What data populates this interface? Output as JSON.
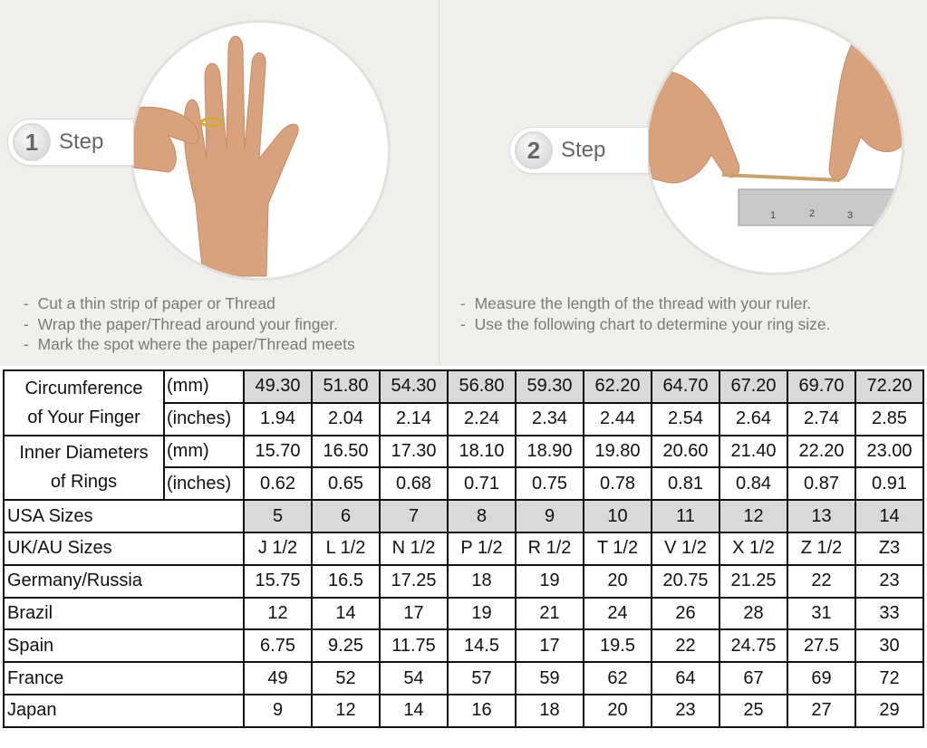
{
  "colors": {
    "background": "#f1efec",
    "header_cell_gray": "#d9d9d9",
    "border": "#111111",
    "instruction_text": "#7a7a7a"
  },
  "steps": [
    {
      "number": "1",
      "label": "Step",
      "image": "hand-with-ring-icon",
      "notes": [
        "Cut a thin strip of paper or Thread",
        "Wrap the paper/Thread around your finger.",
        "Mark the spot where the paper/Thread meets"
      ]
    },
    {
      "number": "2",
      "label": "Step",
      "image": "thread-and-ruler-icon",
      "notes": [
        "Measure the length of the thread with your ruler.",
        "Use the following chart to determine your ring size."
      ]
    }
  ],
  "table": {
    "circumference": {
      "label_line1": "Circumference",
      "label_line2": "of Your Finger",
      "mm": {
        "unit": "(mm)",
        "values": [
          "49.30",
          "51.80",
          "54.30",
          "56.80",
          "59.30",
          "62.20",
          "64.70",
          "67.20",
          "69.70",
          "72.20"
        ]
      },
      "inches": {
        "unit": "(inches)",
        "values": [
          "1.94",
          "2.04",
          "2.14",
          "2.24",
          "2.34",
          "2.44",
          "2.54",
          "2.64",
          "2.74",
          "2.85"
        ]
      }
    },
    "diameter": {
      "label_line1": "Inner Diameters",
      "label_line2": "of Rings",
      "mm": {
        "unit": "(mm)",
        "values": [
          "15.70",
          "16.50",
          "17.30",
          "18.10",
          "18.90",
          "19.80",
          "20.60",
          "21.40",
          "22.20",
          "23.00"
        ]
      },
      "inches": {
        "unit": "(inches)",
        "values": [
          "0.62",
          "0.65",
          "0.68",
          "0.71",
          "0.75",
          "0.78",
          "0.81",
          "0.84",
          "0.87",
          "0.91"
        ]
      }
    },
    "rows": [
      {
        "label": "USA Sizes",
        "values": [
          "5",
          "6",
          "7",
          "8",
          "9",
          "10",
          "11",
          "12",
          "13",
          "14"
        ]
      },
      {
        "label": "UK/AU Sizes",
        "values": [
          "J 1/2",
          "L 1/2",
          "N 1/2",
          "P 1/2",
          "R 1/2",
          "T 1/2",
          "V 1/2",
          "X 1/2",
          "Z 1/2",
          "Z3"
        ]
      },
      {
        "label": "Germany/Russia",
        "values": [
          "15.75",
          "16.5",
          "17.25",
          "18",
          "19",
          "20",
          "20.75",
          "21.25",
          "22",
          "23"
        ]
      },
      {
        "label": "Brazil",
        "values": [
          "12",
          "14",
          "17",
          "19",
          "21",
          "24",
          "26",
          "28",
          "31",
          "33"
        ]
      },
      {
        "label": "Spain",
        "values": [
          "6.75",
          "9.25",
          "11.75",
          "14.5",
          "17",
          "19.5",
          "22",
          "24.75",
          "27.5",
          "30"
        ]
      },
      {
        "label": "France",
        "values": [
          "49",
          "52",
          "54",
          "57",
          "59",
          "62",
          "64",
          "67",
          "69",
          "72"
        ]
      },
      {
        "label": "Japan",
        "values": [
          "9",
          "12",
          "14",
          "16",
          "18",
          "20",
          "23",
          "25",
          "27",
          "29"
        ]
      }
    ]
  }
}
